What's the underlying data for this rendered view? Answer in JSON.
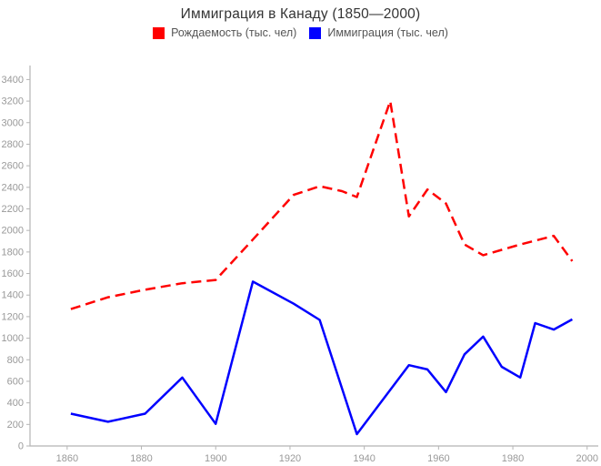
{
  "title": "Иммиграция в Канаду (1850—2000)",
  "legend": {
    "items": [
      {
        "key": "birth-rate",
        "label": "Рождаемость (тыс. чел)",
        "color": "#ff0000"
      },
      {
        "key": "immigration",
        "label": "Иммиграция (тыс. чел)",
        "color": "#0000ff"
      }
    ]
  },
  "colors": {
    "background": "#ffffff",
    "axis_line": "#b5b5b5",
    "tick_label": "#999999",
    "title_text": "#333333",
    "legend_text": "#555555"
  },
  "chart_data": {
    "type": "line",
    "title": "Иммиграция в Канаду (1850—2000)",
    "x": [
      1861,
      1871,
      1881,
      1891,
      1900,
      1910,
      1921,
      1928,
      1934,
      1938,
      1947,
      1952,
      1957,
      1962,
      1967,
      1972,
      1977,
      1982,
      1986,
      1991,
      1996
    ],
    "series": [
      {
        "name": "Рождаемость (тыс. чел)",
        "key": "birth-rate",
        "color": "#ff0000",
        "line_style": "dashed",
        "values": [
          1270,
          1380,
          1450,
          1510,
          1540,
          1915,
          2330,
          2410,
          2365,
          2310,
          3200,
          2130,
          2380,
          2250,
          1870,
          1770,
          1820,
          1870,
          1905,
          1950,
          1715
        ]
      },
      {
        "name": "Иммиграция (тыс. чел)",
        "key": "immigration",
        "color": "#0000ff",
        "line_style": "solid",
        "values": [
          300,
          225,
          300,
          635,
          205,
          1525,
          1320,
          1170,
          535,
          110,
          520,
          750,
          710,
          500,
          850,
          1015,
          735,
          635,
          1140,
          1080,
          1175
        ]
      }
    ],
    "xlabel": "",
    "ylabel": "",
    "xlim": [
      1850,
      2003
    ],
    "ylim": [
      0,
      3530
    ],
    "x_ticks": [
      1860,
      1880,
      1900,
      1920,
      1940,
      1960,
      1980,
      2000
    ],
    "y_ticks": [
      0,
      200,
      400,
      600,
      800,
      1000,
      1200,
      1400,
      1600,
      1800,
      2000,
      2200,
      2400,
      2600,
      2800,
      3000,
      3200,
      3400
    ],
    "grid": false,
    "legend_position": "top"
  }
}
